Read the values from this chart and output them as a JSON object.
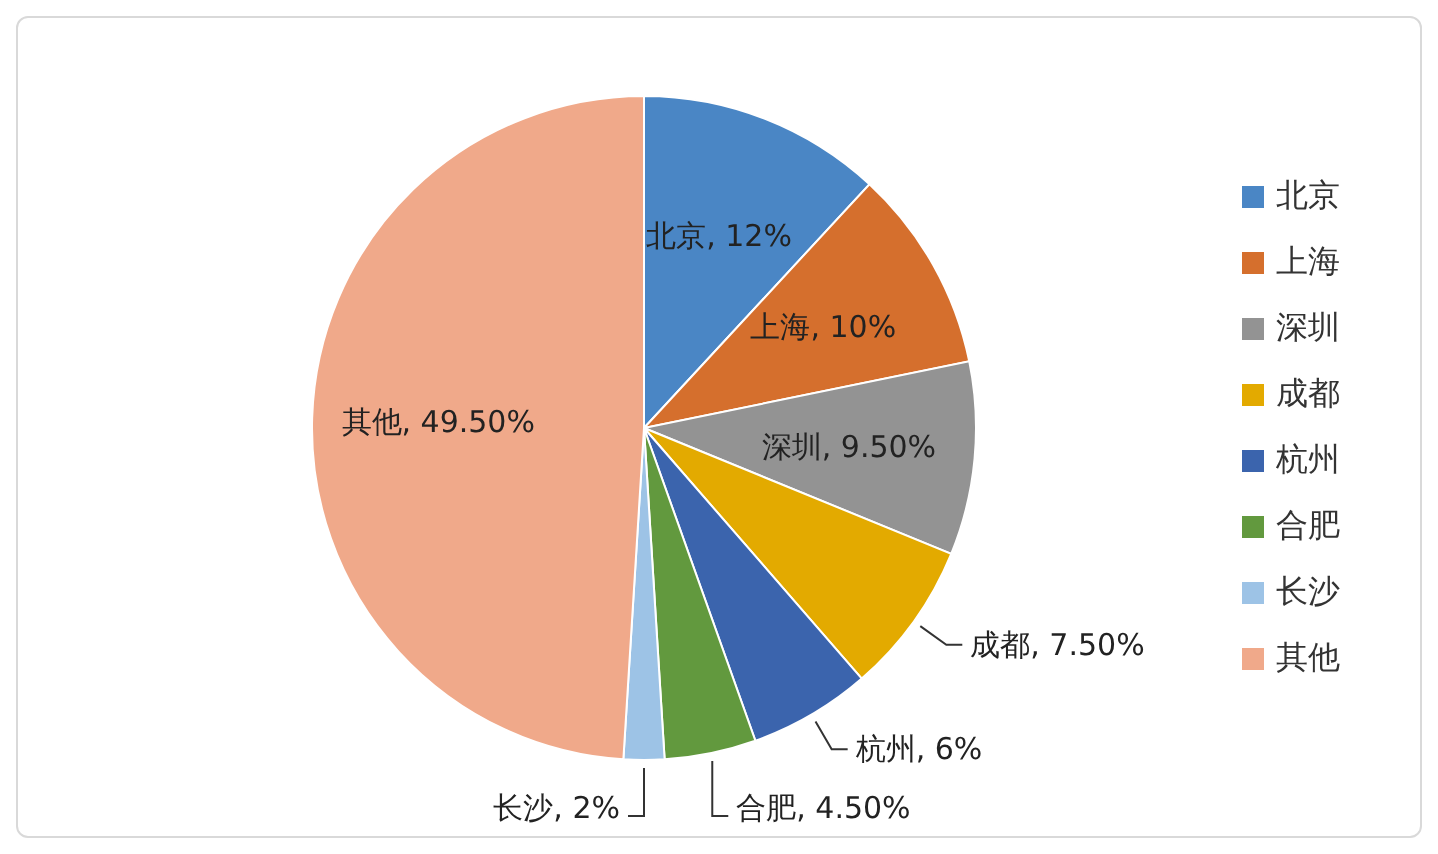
{
  "chart_data": {
    "type": "pie",
    "categories": [
      "北京",
      "上海",
      "深圳",
      "成都",
      "杭州",
      "合肥",
      "长沙",
      "其他"
    ],
    "values": [
      12,
      10,
      9.5,
      7.5,
      6,
      4.5,
      2,
      49.5
    ],
    "value_labels": [
      "北京, 12%",
      "上海, 10%",
      "深圳, 9.50%",
      "成都, 7.50%",
      "杭州, 6%",
      "合肥, 4.50%",
      "长沙, 2%",
      "其他, 49.50%"
    ],
    "colors": [
      "#4a86c5",
      "#d56f2d",
      "#939393",
      "#e3aa00",
      "#3b64ad",
      "#62993e",
      "#9dc3e6",
      "#f0a98a"
    ],
    "legend": "right"
  }
}
